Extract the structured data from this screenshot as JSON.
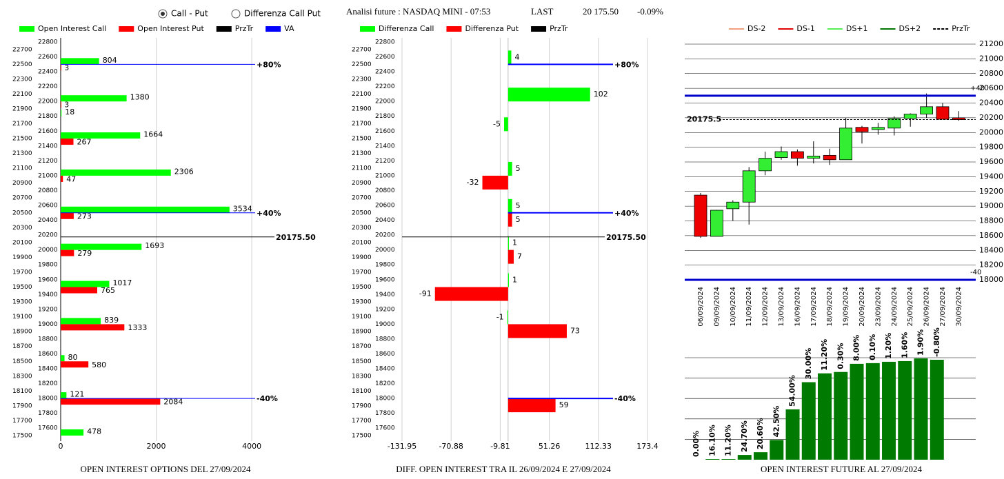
{
  "header": {
    "options": [
      "Call - Put",
      "Differenza Call Put"
    ],
    "selected": 0,
    "title": "Analisi future : NASDAQ MINI - 07:53",
    "last_label": "LAST",
    "last_value": "20 175.50",
    "change": "-0.09%"
  },
  "chart_data": [
    {
      "type": "hbar",
      "title": "OPEN INTEREST OPTIONS DEL 27/09/2024",
      "y": [
        22500,
        22000,
        21800,
        21500,
        21000,
        20500,
        20000,
        19500,
        19000,
        18500,
        18000,
        17500
      ],
      "series": [
        {
          "name": "Open Interest Call",
          "color": "#00ff00",
          "values": [
            804,
            1380,
            18,
            1664,
            2306,
            3534,
            1693,
            1017,
            839,
            80,
            121,
            478
          ]
        },
        {
          "name": "Open Interest Put",
          "color": "#ff0000",
          "values": [
            3,
            3,
            null,
            267,
            47,
            273,
            279,
            765,
            1333,
            580,
            2084,
            null
          ]
        }
      ],
      "price": {
        "name": "PrzTr",
        "color": "#000000",
        "value": 20175.5,
        "label": "20175.50"
      },
      "levels": {
        "name": "VA",
        "color": "#0000ff",
        "values": [
          22500,
          20500,
          18000
        ],
        "labels": [
          "+80%",
          "+40%",
          "-40%"
        ]
      },
      "xlim": [
        0,
        5500
      ],
      "xticks": [
        0,
        2000,
        4000
      ],
      "grid": true,
      "ylim": [
        17500,
        22800
      ],
      "yticks": [
        17500,
        17600,
        17700,
        17800,
        17900,
        18000,
        18100,
        18200,
        18300,
        18400,
        18500,
        18600,
        18700,
        18800,
        18900,
        19000,
        19100,
        19200,
        19300,
        19400,
        19500,
        19600,
        19700,
        19800,
        19900,
        20000,
        20100,
        20200,
        20300,
        20400,
        20500,
        20600,
        20700,
        20800,
        20900,
        21000,
        21100,
        21200,
        21300,
        21400,
        21500,
        21600,
        21700,
        21800,
        21900,
        22000,
        22100,
        22200,
        22300,
        22400,
        22500,
        22600,
        22700,
        22800
      ]
    },
    {
      "type": "hbar",
      "title": "DIFF. OPEN INTEREST TRA IL 26/09/2024 E 27/09/2024",
      "y": [
        22500,
        22000,
        21600,
        21000,
        20500,
        20000,
        19500,
        19000,
        18000
      ],
      "series": [
        {
          "name": "Differenza Call",
          "color": "#00ff00",
          "values": [
            4,
            102,
            -5,
            5,
            5,
            1,
            1,
            -1,
            null
          ]
        },
        {
          "name": "Differenza Put",
          "color": "#ff0000",
          "values": [
            null,
            null,
            null,
            -32,
            5,
            7,
            -91,
            73,
            59
          ]
        }
      ],
      "price": {
        "name": "PrzTr",
        "color": "#000000",
        "value": 20175.5,
        "label": "20175.50"
      },
      "levels": {
        "color": "#0000ff",
        "values": [
          22500,
          20500,
          18000
        ],
        "labels": [
          "+80%",
          "+40%",
          "-40%"
        ]
      },
      "xlim": [
        -131.95,
        173.4
      ],
      "xticks": [
        -131.95,
        -70.88,
        -9.81,
        51.26,
        112.33,
        173.4
      ],
      "grid": true,
      "ylim": [
        17500,
        22800
      ],
      "yticks": [
        17500,
        17600,
        17700,
        17800,
        17900,
        18000,
        18100,
        18200,
        18300,
        18400,
        18500,
        18600,
        18700,
        18800,
        18900,
        19000,
        19100,
        19200,
        19300,
        19400,
        19500,
        19600,
        19700,
        19800,
        19900,
        20000,
        20100,
        20200,
        20300,
        20400,
        20500,
        20600,
        20700,
        20800,
        20900,
        21000,
        21100,
        21200,
        21300,
        21400,
        21500,
        21600,
        21700,
        21800,
        21900,
        22000,
        22100,
        22200,
        22300,
        22400,
        22500,
        22600,
        22700,
        22800
      ]
    },
    {
      "type": "candlestick",
      "categories": [
        "06/09/2024",
        "09/09/2024",
        "10/09/2024",
        "11/09/2024",
        "12/09/2024",
        "13/09/2024",
        "16/09/2024",
        "17/09/2024",
        "18/09/2024",
        "19/09/2024",
        "20/09/2024",
        "23/09/2024",
        "24/09/2024",
        "25/09/2024",
        "26/09/2024",
        "27/09/2024",
        "30/09/2024"
      ],
      "open": [
        19150,
        18590,
        18965,
        19055,
        19480,
        19660,
        19740,
        19650,
        19690,
        19630,
        20070,
        20040,
        20060,
        20190,
        20250,
        20350,
        20200
      ],
      "high": [
        19180,
        18950,
        19080,
        19530,
        19740,
        19810,
        19770,
        19880,
        19780,
        20200,
        20090,
        20130,
        20220,
        20260,
        20530,
        20400,
        20290
      ],
      "low": [
        18570,
        18590,
        18800,
        18750,
        19420,
        19630,
        19550,
        19580,
        19560,
        19630,
        19850,
        19970,
        19960,
        20080,
        20200,
        20180,
        20160
      ],
      "close": [
        18590,
        18945,
        19055,
        19480,
        19650,
        19740,
        19650,
        19680,
        19630,
        20060,
        20010,
        20070,
        20190,
        20250,
        20350,
        20180,
        20175
      ],
      "up_color": "#33ee33",
      "down_color": "#ee0000",
      "legend": [
        {
          "name": "DS-2",
          "color": "#f4a080"
        },
        {
          "name": "DS-1",
          "color": "#e00000"
        },
        {
          "name": "DS+1",
          "color": "#55ee55"
        },
        {
          "name": "DS+2",
          "color": "#007700"
        },
        {
          "name": "PrzTr",
          "color": "#000000",
          "dashed": true
        }
      ],
      "price": {
        "value": 20175.5,
        "color": "#000000"
      },
      "levels": {
        "color": "#0000cc",
        "values": [
          20500,
          18000
        ],
        "labels": [
          "+40",
          "-40"
        ]
      },
      "ylim": [
        18000,
        21200
      ],
      "yticks": [
        18000,
        18200,
        18400,
        18600,
        18800,
        19000,
        19200,
        19400,
        19600,
        19800,
        20000,
        20200,
        20400,
        20600,
        20800,
        21000,
        21200
      ],
      "grid": true
    },
    {
      "type": "bar",
      "title": "OPEN INTEREST FUTURE AL 27/09/2024",
      "values": [
        0,
        1,
        1,
        7,
        11,
        29,
        74,
        114,
        127,
        129,
        141,
        142,
        144,
        145,
        149,
        147
      ],
      "labels": [
        "0.00%",
        "16.10%",
        "11.20%",
        "24.70%",
        "20.60%",
        "42.50%",
        "54.00%",
        "30.00%",
        "11.20%",
        "0.30%",
        "8.00%",
        "0.10%",
        "1.20%",
        "1.60%",
        "1.90%",
        "-0.80%"
      ],
      "color": "#007a00",
      "ylim": [
        0,
        150
      ],
      "grid": true
    }
  ]
}
